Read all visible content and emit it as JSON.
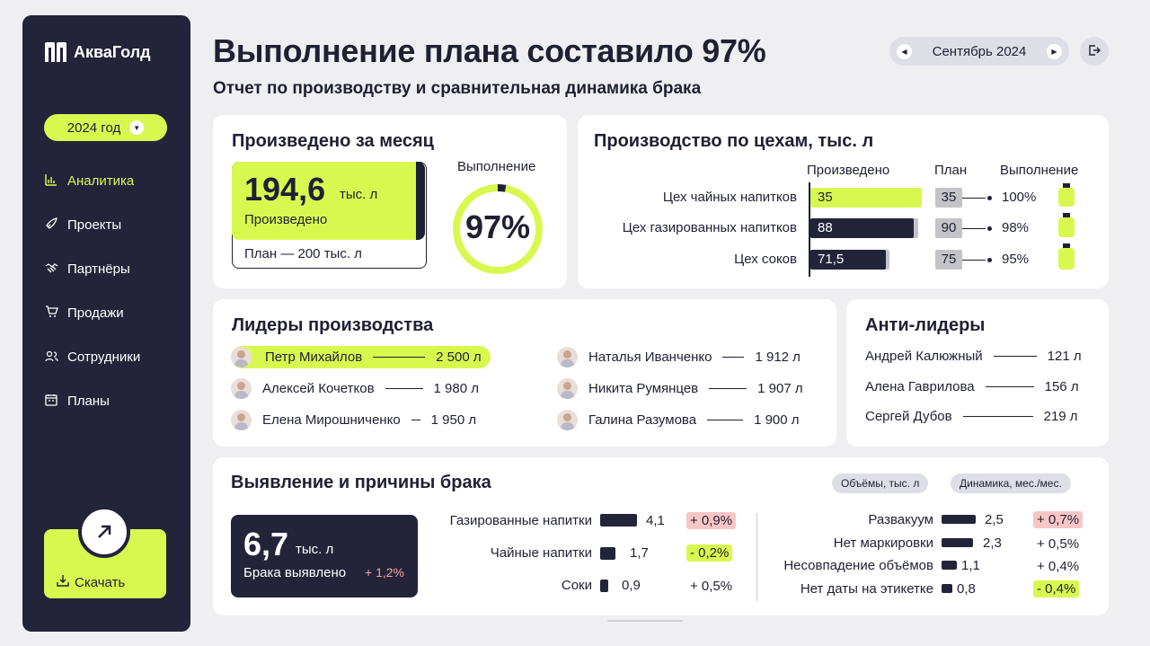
{
  "brand": {
    "name": "АкваГолд"
  },
  "sidebar": {
    "year": "2024 год",
    "items": [
      {
        "label": "Аналитика",
        "icon": "chart-icon"
      },
      {
        "label": "Проекты",
        "icon": "rocket-icon"
      },
      {
        "label": "Партнёры",
        "icon": "handshake-icon"
      },
      {
        "label": "Продажи",
        "icon": "cart-icon"
      },
      {
        "label": "Сотрудники",
        "icon": "users-icon"
      },
      {
        "label": "Планы",
        "icon": "calendar-icon"
      }
    ],
    "download_label": "Скачать"
  },
  "header": {
    "title": "Выполнение плана составило 97%",
    "subtitle": "Отчет по производству и сравнительная динамика брака",
    "month": "Сентябрь 2024"
  },
  "monthly": {
    "title": "Произведено за месяц",
    "value": "194,6",
    "unit": "тыс. л",
    "value_label": "Произведено",
    "plan_label": "План — 200 тыс. л",
    "ring_label": "Выполнение",
    "ring_value": "97%",
    "ring_fraction": 0.97
  },
  "workshops": {
    "title": "Производство по цехам, тыс. л",
    "headers": {
      "produced": "Произведено",
      "plan": "План",
      "completion": "Выполнение"
    },
    "rows": [
      {
        "name": "Цех чайных напитков",
        "produced": "35",
        "plan": "35",
        "pct": "100%",
        "produced_num": 35,
        "plan_num": 35
      },
      {
        "name": "Цех газированных напитков",
        "produced": "88",
        "plan": "90",
        "pct": "98%",
        "produced_num": 88,
        "plan_num": 90
      },
      {
        "name": "Цех соков",
        "produced": "71,5",
        "plan": "75",
        "pct": "95%",
        "produced_num": 71.5,
        "plan_num": 75
      }
    ]
  },
  "leaders": {
    "title": "Лидеры производства",
    "items": [
      {
        "name": "Петр Михайлов",
        "value": "2 500 л"
      },
      {
        "name": "Алексей Кочетков",
        "value": "1 980 л"
      },
      {
        "name": "Елена Мирошниченко",
        "value": "1 950 л"
      },
      {
        "name": "Наталья Иванченко",
        "value": "1 912 л"
      },
      {
        "name": "Никита Румянцев",
        "value": "1 907 л"
      },
      {
        "name": "Галина Разумова",
        "value": "1 900 л"
      }
    ]
  },
  "anti_leaders": {
    "title": "Анти-лидеры",
    "items": [
      {
        "name": "Андрей Калюжный",
        "value": "121 л"
      },
      {
        "name": "Алена Гаврилова",
        "value": "156 л"
      },
      {
        "name": "Сергей Дубов",
        "value": "219 л"
      }
    ]
  },
  "defects": {
    "title": "Выявление и причины брака",
    "chips": {
      "volumes": "Объёмы, тыс. л",
      "dynamics": "Динамика, мес./мес."
    },
    "total_value": "6,7",
    "total_unit": "тыс. л",
    "total_label": "Брака выявлено",
    "total_change": "+ 1,2%",
    "by_category": [
      {
        "name": "Газированные напитки",
        "value": "4,1",
        "change": "+ 0,9%",
        "tone": "red",
        "num": 4.1
      },
      {
        "name": "Чайные напитки",
        "value": "1,7",
        "change": "- 0,2%",
        "tone": "green",
        "num": 1.7
      },
      {
        "name": "Соки",
        "value": "0,9",
        "change": "+ 0,5%",
        "tone": "none",
        "num": 0.9
      }
    ],
    "by_reason": [
      {
        "name": "Развакуум",
        "value": "2,5",
        "change": "+ 0,7%",
        "tone": "red",
        "num": 2.5
      },
      {
        "name": "Нет маркировки",
        "value": "2,3",
        "change": "+ 0,5%",
        "tone": "none",
        "num": 2.3
      },
      {
        "name": "Несовпадение объёмов",
        "value": "1,1",
        "change": "+ 0,4%",
        "tone": "none",
        "num": 1.1
      },
      {
        "name": "Нет даты на этикетке",
        "value": "0,8",
        "change": "- 0,4%",
        "tone": "green",
        "num": 0.8
      }
    ]
  },
  "colors": {
    "accent": "#d9f84f",
    "dark": "#23233a",
    "negative": "#f8c6c6",
    "background": "#efeff1"
  }
}
